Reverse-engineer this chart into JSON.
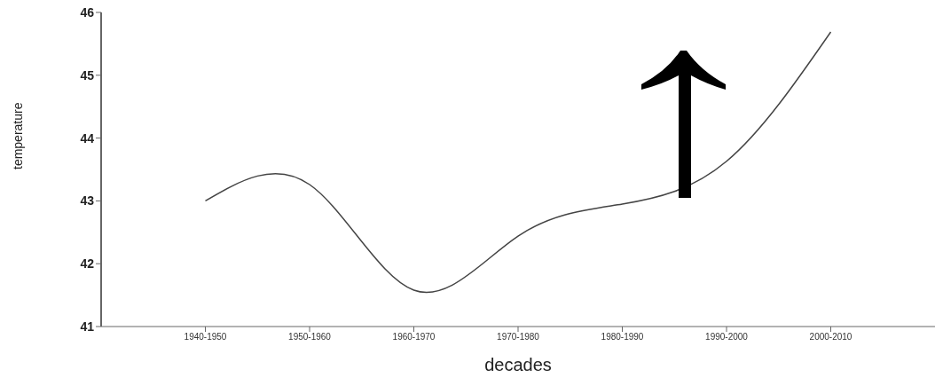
{
  "chart_data": {
    "type": "line",
    "xlabel": "decades",
    "ylabel": "temperature",
    "categories": [
      "1940-1950",
      "1950-1960",
      "1960-1970",
      "1970-1980",
      "1980-1990",
      "1990-2000",
      "2000-2010"
    ],
    "series": [
      {
        "color": "#444444",
        "values": [
          43.0,
          43.26,
          41.58,
          42.44,
          42.95,
          43.63,
          45.69
        ]
      }
    ],
    "ylim": [
      41,
      46
    ],
    "yticks": [
      41,
      42,
      43,
      44,
      45,
      46
    ],
    "grid": false,
    "marker": "none",
    "line_style": "solid"
  }
}
